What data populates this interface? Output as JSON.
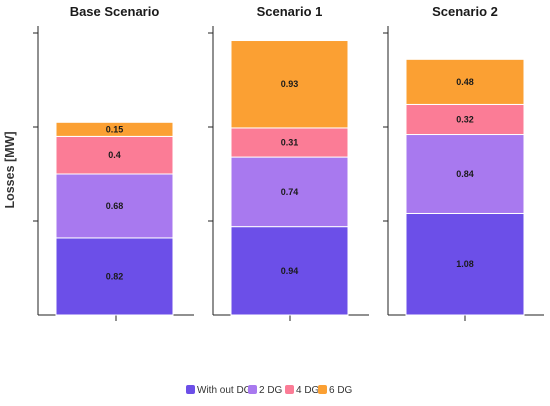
{
  "chart_data": {
    "type": "bar",
    "stacked": true,
    "categories": [
      "Base Scenario",
      "Scenario 1",
      "Scenario 2"
    ],
    "ylabel": "Losses [MW]",
    "ylim": [
      0,
      3
    ],
    "grid": false,
    "legend_position": "bottom",
    "series": [
      {
        "name": "With out DG",
        "color": "#6c4fe8",
        "values": [
          0.82,
          0.94,
          1.08
        ]
      },
      {
        "name": "2 DG",
        "color": "#a879ef",
        "values": [
          0.68,
          0.74,
          0.84
        ]
      },
      {
        "name": "4 DG",
        "color": "#fb7c96",
        "values": [
          0.4,
          0.31,
          0.32
        ]
      },
      {
        "name": "6 DG",
        "color": "#fba033",
        "values": [
          0.15,
          0.93,
          0.48
        ]
      }
    ]
  }
}
